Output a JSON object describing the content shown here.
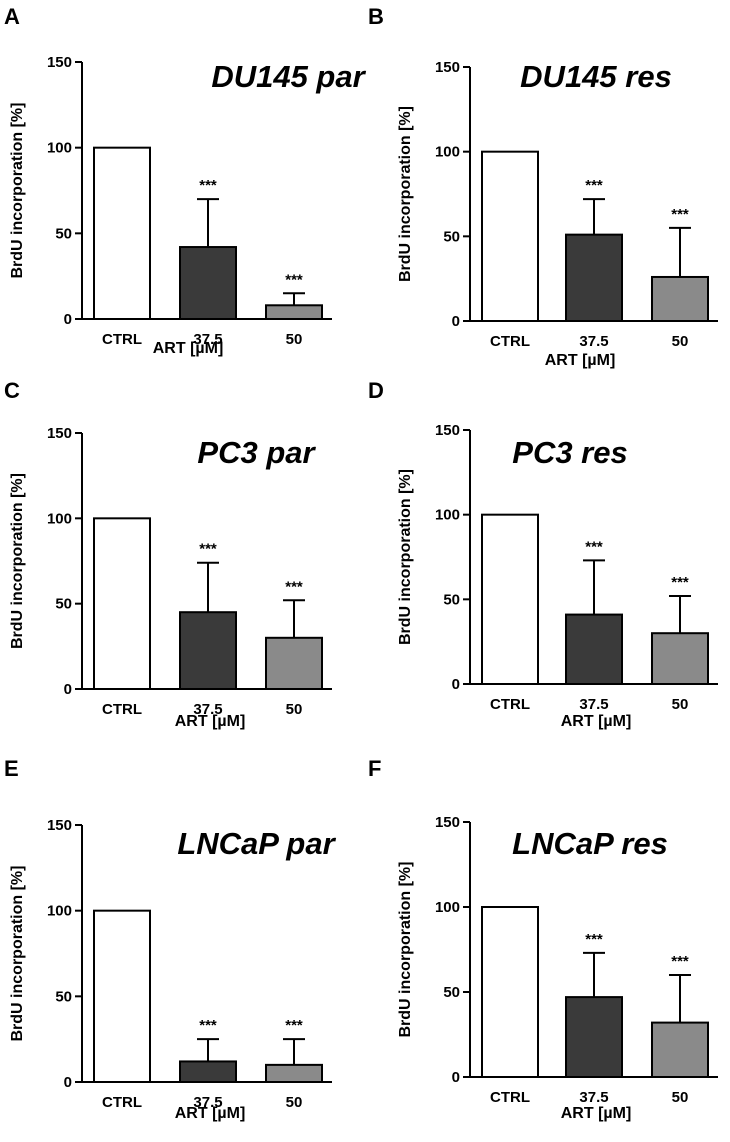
{
  "colors": {
    "ctrl_fill": "#ffffff",
    "dose_37_5_fill": "#3a3a3a",
    "dose_50_fill": "#8a8a8a",
    "stroke": "#000000"
  },
  "chart_data": [
    {
      "panel": "A",
      "type": "bar",
      "title": "DU145 par",
      "xlabel": "ART [µM]",
      "ylabel": "BrdU incorporation [%]",
      "ylim": [
        0,
        150
      ],
      "yticks": [
        "0",
        "50",
        "100",
        "150"
      ],
      "categories": [
        "CTRL",
        "37.5",
        "50"
      ],
      "values": [
        100,
        42,
        8
      ],
      "errors": [
        0,
        28,
        7
      ],
      "significance": [
        "",
        "***",
        "***"
      ]
    },
    {
      "panel": "B",
      "type": "bar",
      "title": "DU145 res",
      "xlabel": "ART [µM]",
      "ylabel": "BrdU incorporation [%]",
      "ylim": [
        0,
        150
      ],
      "yticks": [
        "0",
        "50",
        "100",
        "150"
      ],
      "categories": [
        "CTRL",
        "37.5",
        "50"
      ],
      "values": [
        100,
        51,
        26
      ],
      "errors": [
        0,
        21,
        29
      ],
      "significance": [
        "",
        "***",
        "***"
      ]
    },
    {
      "panel": "C",
      "type": "bar",
      "title": "PC3 par",
      "xlabel": "ART [µM]",
      "ylabel": "BrdU incorporation [%]",
      "ylim": [
        0,
        150
      ],
      "yticks": [
        "0",
        "50",
        "100",
        "150"
      ],
      "categories": [
        "CTRL",
        "37.5",
        "50"
      ],
      "values": [
        100,
        45,
        30
      ],
      "errors": [
        0,
        29,
        22
      ],
      "significance": [
        "",
        "***",
        "***"
      ]
    },
    {
      "panel": "D",
      "type": "bar",
      "title": "PC3 res",
      "xlabel": "ART [µM]",
      "ylabel": "BrdU incorporation [%]",
      "ylim": [
        0,
        150
      ],
      "yticks": [
        "0",
        "50",
        "100",
        "150"
      ],
      "categories": [
        "CTRL",
        "37.5",
        "50"
      ],
      "values": [
        100,
        41,
        30
      ],
      "errors": [
        0,
        32,
        22
      ],
      "significance": [
        "",
        "***",
        "***"
      ]
    },
    {
      "panel": "E",
      "type": "bar",
      "title": "LNCaP par",
      "xlabel": "ART [µM]",
      "ylabel": "BrdU incorporation [%]",
      "ylim": [
        0,
        150
      ],
      "yticks": [
        "0",
        "50",
        "100",
        "150"
      ],
      "categories": [
        "CTRL",
        "37.5",
        "50"
      ],
      "values": [
        100,
        12,
        10
      ],
      "errors": [
        0,
        13,
        15
      ],
      "significance": [
        "",
        "***",
        "***"
      ]
    },
    {
      "panel": "F",
      "type": "bar",
      "title": "LNCaP res",
      "xlabel": "ART [µM]",
      "ylabel": "BrdU incorporation [%]",
      "ylim": [
        0,
        150
      ],
      "yticks": [
        "0",
        "50",
        "100",
        "150"
      ],
      "categories": [
        "CTRL",
        "37.5",
        "50"
      ],
      "values": [
        100,
        47,
        32
      ],
      "errors": [
        0,
        26,
        28
      ],
      "significance": [
        "",
        "***",
        "***"
      ]
    }
  ]
}
